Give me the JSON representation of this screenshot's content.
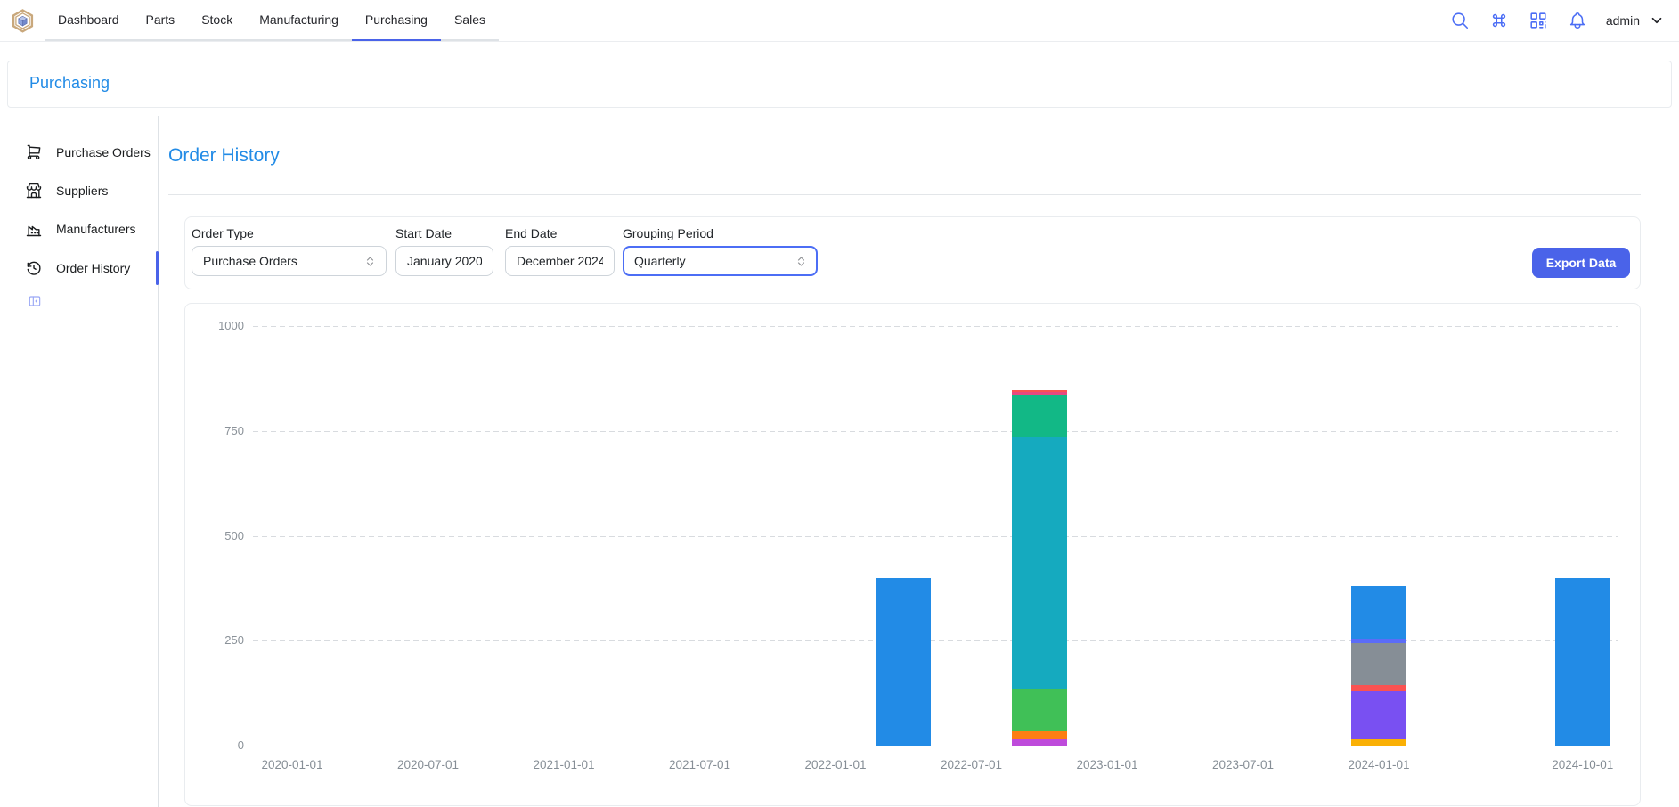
{
  "navbar": {
    "tabs": [
      {
        "label": "Dashboard"
      },
      {
        "label": "Parts"
      },
      {
        "label": "Stock"
      },
      {
        "label": "Manufacturing"
      },
      {
        "label": "Purchasing"
      },
      {
        "label": "Sales"
      }
    ],
    "active_tab": "Purchasing",
    "icons": [
      "search",
      "command",
      "qrcode",
      "bell"
    ],
    "user": "admin"
  },
  "breadcrumb": {
    "title": "Purchasing"
  },
  "sidebar": {
    "items": [
      {
        "label": "Purchase Orders",
        "icon": "shopping-cart",
        "active": false
      },
      {
        "label": "Suppliers",
        "icon": "storefront",
        "active": false
      },
      {
        "label": "Manufacturers",
        "icon": "factory",
        "active": false
      },
      {
        "label": "Order History",
        "icon": "history",
        "active": true
      }
    ],
    "collapse_icon": "sidebar-collapse"
  },
  "main": {
    "title": "Order History",
    "filters": {
      "order_type": {
        "label": "Order Type",
        "value": "Purchase Orders",
        "kind": "select"
      },
      "start_date": {
        "label": "Start Date",
        "value": "January 2020",
        "kind": "month-input"
      },
      "end_date": {
        "label": "End Date",
        "value": "December 2024",
        "kind": "month-input"
      },
      "grouping": {
        "label": "Grouping Period",
        "value": "Quarterly",
        "kind": "select",
        "focused": true
      }
    },
    "export_label": "Export Data"
  },
  "colors": {
    "accent_blue": "#228be6",
    "accent_indigo": "#4a63e9",
    "navbar_icon": "#4c6ef5",
    "grid": "#d8dbdf",
    "axis_text": "#868e96"
  },
  "chart_data": {
    "type": "bar",
    "stacked": true,
    "title": "",
    "xlabel": "",
    "ylabel": "",
    "ylim": [
      0,
      1000
    ],
    "y_ticks": [
      1000,
      750,
      500,
      250,
      0
    ],
    "grid": "horizontal-dashed",
    "legend": "none",
    "x_tick_labels": [
      "2020-01-01",
      "2020-07-01",
      "2021-01-01",
      "2021-07-01",
      "2022-01-01",
      "2022-07-01",
      "2023-01-01",
      "2023-07-01",
      "2024-01-01",
      "2024-10-01"
    ],
    "bars": [
      {
        "date": "2022-04-01",
        "total": 400,
        "segments": [
          {
            "series": "blue",
            "value": 400
          }
        ]
      },
      {
        "date": "2022-10-01",
        "total": 848,
        "segments": [
          {
            "series": "grape",
            "value": 15
          },
          {
            "series": "orange",
            "value": 20
          },
          {
            "series": "green",
            "value": 100
          },
          {
            "series": "cyan",
            "value": 600
          },
          {
            "series": "emerald",
            "value": 100
          },
          {
            "series": "pink",
            "value": 8
          },
          {
            "series": "red",
            "value": 5
          }
        ]
      },
      {
        "date": "2024-01-01",
        "total": 380,
        "segments": [
          {
            "series": "amber",
            "value": 15
          },
          {
            "series": "violet",
            "value": 115
          },
          {
            "series": "red",
            "value": 15
          },
          {
            "series": "gray",
            "value": 100
          },
          {
            "series": "indigo",
            "value": 10
          },
          {
            "series": "blue",
            "value": 125
          }
        ]
      },
      {
        "date": "2024-10-01",
        "total": 400,
        "segments": [
          {
            "series": "blue",
            "value": 400
          }
        ]
      }
    ],
    "palette": {
      "blue": "#228be6",
      "cyan": "#15aabf",
      "emerald": "#12b886",
      "green": "#40c057",
      "grape": "#be4bdb",
      "orange": "#fd7e14",
      "pink": "#e64980",
      "red": "#fa5252",
      "amber": "#fab005",
      "violet": "#7950f2",
      "gray": "#868e96",
      "indigo": "#5b6cf7"
    }
  }
}
